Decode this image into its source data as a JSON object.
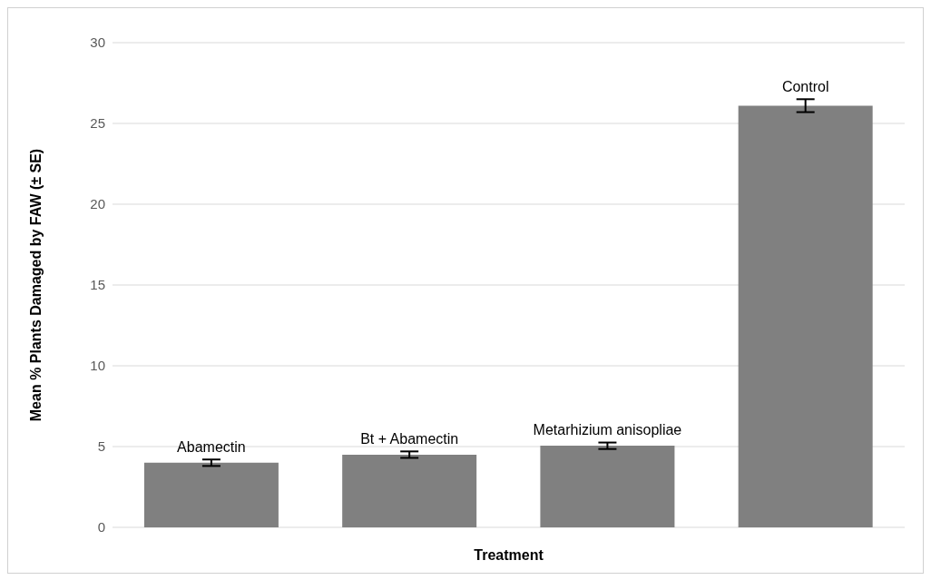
{
  "chart_data": {
    "type": "bar",
    "xlabel": "Treatment",
    "ylabel": "Mean % Plants Damaged by FAW (± SE)",
    "categories": [
      "Abamectin",
      "Bt + Abamectin",
      "Metarhizium anisopliae",
      "Control"
    ],
    "values": [
      4.0,
      4.5,
      5.05,
      26.1
    ],
    "errors": [
      0.2,
      0.2,
      0.2,
      0.4
    ],
    "color": "#808080",
    "ylim": [
      0,
      30
    ],
    "yticks": [
      0,
      5,
      10,
      15,
      20,
      25,
      30
    ],
    "grid": "y"
  }
}
